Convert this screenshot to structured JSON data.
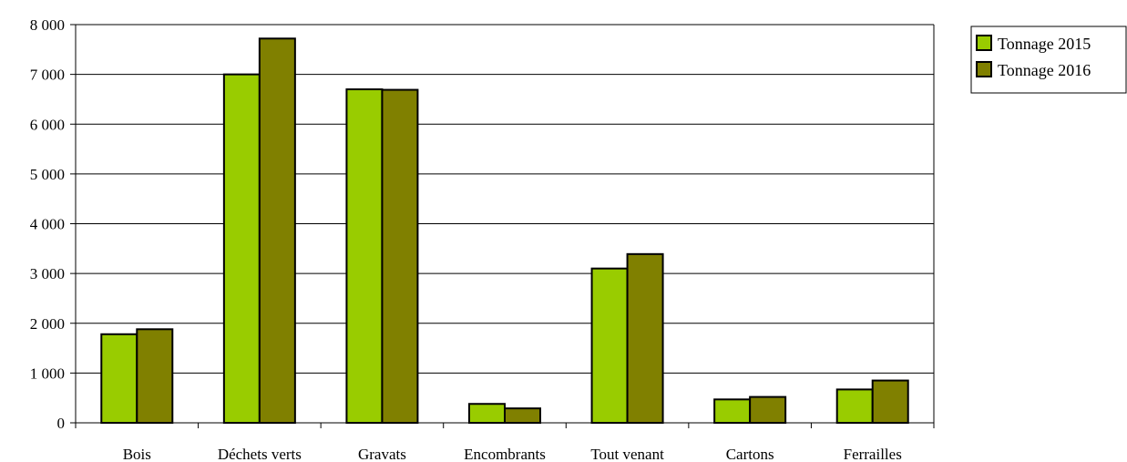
{
  "chart_data": {
    "type": "bar",
    "title": "",
    "xlabel": "",
    "ylabel": "",
    "categories": [
      "Bois",
      "Déchets verts",
      "Gravats",
      "Encombrants",
      "Tout venant",
      "Cartons",
      "Ferrailles"
    ],
    "series": [
      {
        "name": "Tonnage 2015",
        "color": "#99cc00",
        "values": [
          1780,
          7000,
          6700,
          380,
          3100,
          470,
          670
        ]
      },
      {
        "name": "Tonnage 2016",
        "color": "#808000",
        "values": [
          1880,
          7720,
          6690,
          290,
          3390,
          520,
          850
        ]
      }
    ],
    "ylim": [
      0,
      8000
    ],
    "yticks": [
      0,
      1000,
      2000,
      3000,
      4000,
      5000,
      6000,
      7000,
      8000
    ],
    "ytick_labels": [
      "0",
      "1 000",
      "2 000",
      "3 000",
      "4 000",
      "5 000",
      "6 000",
      "7 000",
      "8 000"
    ],
    "grid": true,
    "legend_position": "top-right"
  }
}
